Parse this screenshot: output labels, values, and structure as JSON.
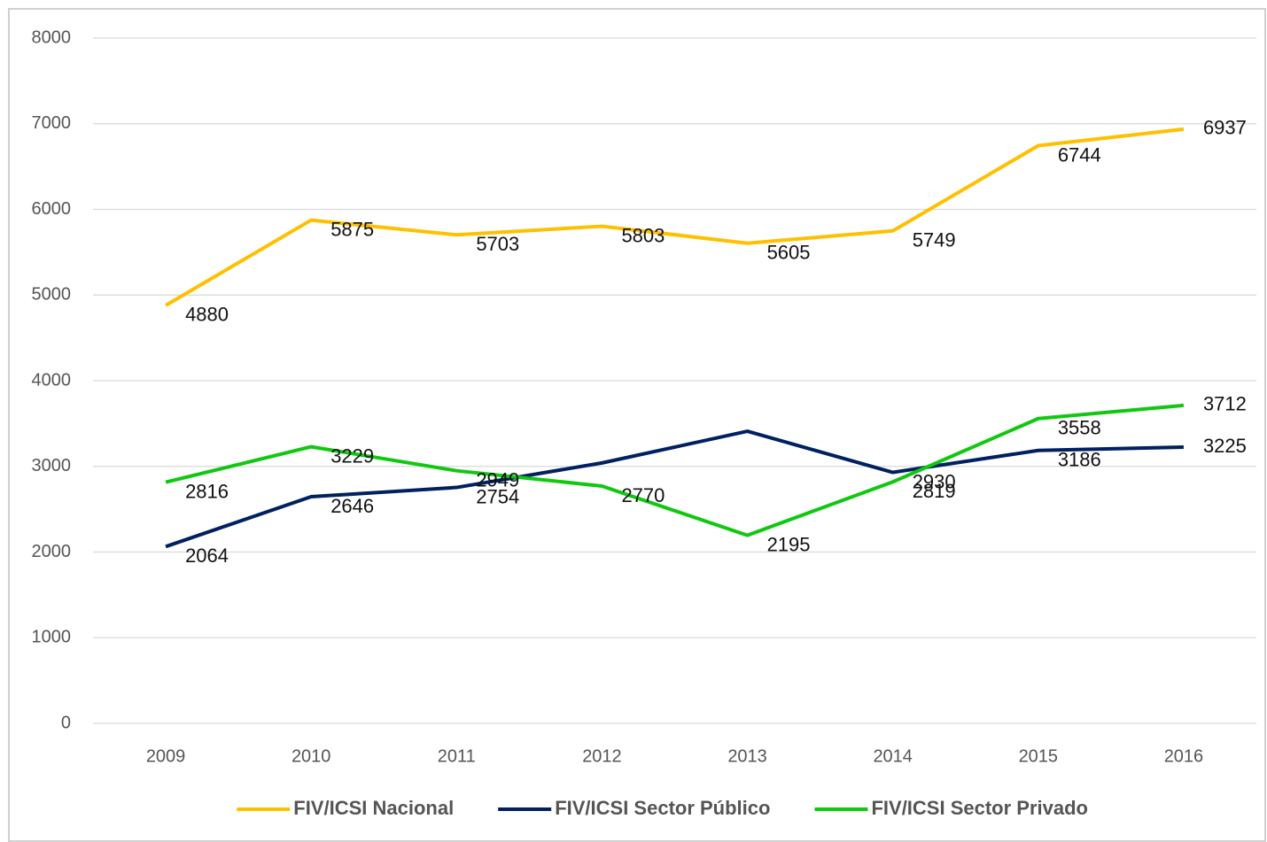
{
  "chart_data": {
    "type": "line",
    "categories": [
      "2009",
      "2010",
      "2011",
      "2012",
      "2013",
      "2014",
      "2015",
      "2016"
    ],
    "series": [
      {
        "name": "FIV/ICSI Nacional",
        "color": "#ffc000",
        "values": [
          4880,
          5875,
          5703,
          5803,
          5605,
          5749,
          6744,
          6937
        ]
      },
      {
        "name": "FIV/ICSI Sector Público",
        "color": "#002060",
        "values": [
          2064,
          2646,
          2754,
          3040,
          3410,
          2930,
          3186,
          3225
        ],
        "value_labels": [
          "2064",
          "2646",
          "2754",
          null,
          null,
          "2930",
          "3186",
          "3225"
        ]
      },
      {
        "name": "FIV/ICSI Sector Privado",
        "color": "#10c810",
        "values": [
          2816,
          3229,
          2949,
          2770,
          2195,
          2819,
          3558,
          3712
        ]
      }
    ],
    "ylim": [
      0,
      8000
    ],
    "yticks": [
      0,
      1000,
      2000,
      3000,
      4000,
      5000,
      6000,
      7000,
      8000
    ],
    "grid": true,
    "legend": "bottom"
  }
}
